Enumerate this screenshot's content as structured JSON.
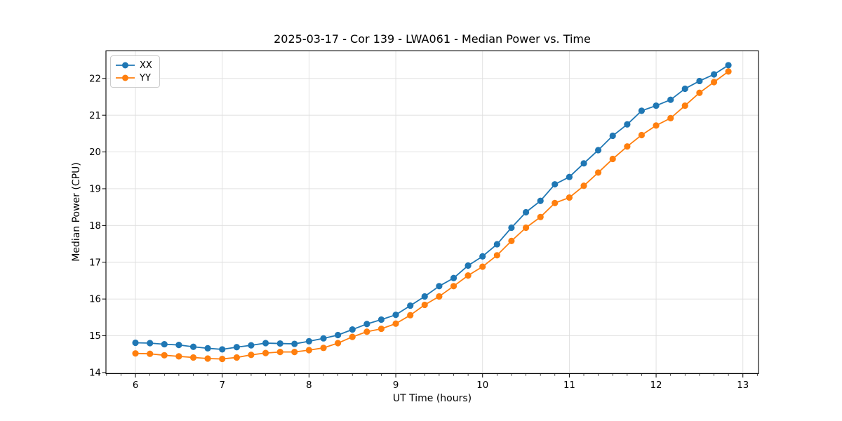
{
  "chart_data": {
    "type": "line",
    "title": "2025-03-17 - Cor 139 - LWA061 - Median Power vs. Time",
    "xlabel": "UT Time (hours)",
    "ylabel": "Median Power (CPU)",
    "xlim": [
      5.66,
      13.18
    ],
    "ylim": [
      13.97,
      22.75
    ],
    "x_major_ticks": [
      6,
      7,
      8,
      9,
      10,
      11,
      12,
      13
    ],
    "y_major_ticks": [
      14,
      15,
      16,
      17,
      18,
      19,
      20,
      21,
      22
    ],
    "x_minor_step": 0.166667,
    "grid": true,
    "grid_color": "#dedede",
    "spine_color": "#000000",
    "legend_position": "upper-left",
    "x": [
      6.0,
      6.167,
      6.333,
      6.5,
      6.667,
      6.833,
      7.0,
      7.167,
      7.333,
      7.5,
      7.667,
      7.833,
      8.0,
      8.167,
      8.333,
      8.5,
      8.667,
      8.833,
      9.0,
      9.167,
      9.333,
      9.5,
      9.667,
      9.833,
      10.0,
      10.167,
      10.333,
      10.5,
      10.667,
      10.833,
      11.0,
      11.167,
      11.333,
      11.5,
      11.667,
      11.833,
      12.0,
      12.167,
      12.333,
      12.5,
      12.667,
      12.833
    ],
    "series": [
      {
        "name": "XX",
        "color": "#1f77b4",
        "values": [
          14.81,
          14.8,
          14.77,
          14.75,
          14.7,
          14.66,
          14.63,
          14.69,
          14.74,
          14.8,
          14.79,
          14.78,
          14.85,
          14.93,
          15.02,
          15.17,
          15.32,
          15.44,
          15.57,
          15.82,
          16.07,
          16.35,
          16.57,
          16.91,
          17.16,
          17.49,
          17.94,
          18.36,
          18.67,
          19.12,
          19.32,
          19.69,
          20.05,
          20.44,
          20.75,
          21.12,
          21.26,
          21.42,
          21.72,
          21.93,
          22.11,
          22.36
        ]
      },
      {
        "name": "YY",
        "color": "#ff7f0e",
        "values": [
          14.52,
          14.51,
          14.47,
          14.44,
          14.41,
          14.38,
          14.37,
          14.41,
          14.48,
          14.53,
          14.56,
          14.56,
          14.61,
          14.67,
          14.8,
          14.97,
          15.11,
          15.19,
          15.33,
          15.56,
          15.84,
          16.07,
          16.35,
          16.64,
          16.88,
          17.19,
          17.58,
          17.94,
          18.23,
          18.61,
          18.76,
          19.08,
          19.44,
          19.81,
          20.15,
          20.46,
          20.72,
          20.92,
          21.26,
          21.61,
          21.9,
          22.19
        ]
      }
    ]
  }
}
